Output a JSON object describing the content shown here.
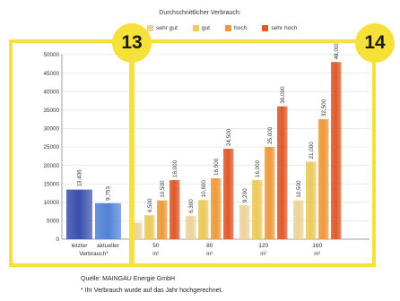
{
  "badges": [
    "13",
    "14"
  ],
  "footer": {
    "source": "Quelle: MAINGAU Energie GmbH",
    "note": "* Ihr Verbrauch wurde auf das Jahr hochgerechnet."
  },
  "chart_data": {
    "type": "bar",
    "title": "Durchschnittlicher Verbrauch:",
    "ylim": [
      0,
      50000
    ],
    "yticks": [
      "0",
      "5000",
      "10000",
      "15000",
      "20000",
      "25000",
      "30000",
      "35000",
      "40000",
      "45000",
      "50000"
    ],
    "legend": [
      {
        "label": "sehr gut",
        "color": "#ecd39a"
      },
      {
        "label": "gut",
        "color": "#ecc95a"
      },
      {
        "label": "hoch",
        "color": "#ee9a3a"
      },
      {
        "label": "sehr hoch",
        "color": "#dd5a2c"
      }
    ],
    "user": {
      "groups": [
        {
          "label": [
            "letzter",
            "Verbrauch*"
          ],
          "value": 13436,
          "value_label": "13,436"
        },
        {
          "label": [
            "aktueller",
            ""
          ],
          "value": 9753,
          "value_label": "9,753"
        }
      ],
      "colors": [
        "#3b4fae",
        "#4f82d6"
      ]
    },
    "categories": [
      {
        "label": "50",
        "unit": "m²"
      },
      {
        "label": "80",
        "unit": "m²"
      },
      {
        "label": "120",
        "unit": "m²"
      },
      {
        "label": "160",
        "unit": "m²"
      }
    ],
    "series": [
      {
        "name": "sehr gut",
        "values": [
          4500,
          6300,
          9200,
          10500
        ],
        "labels": [
          "",
          "6,300",
          "9,200",
          "10,500"
        ]
      },
      {
        "name": "gut",
        "values": [
          6500,
          10600,
          16000,
          21000
        ],
        "labels": [
          "6,500",
          "10,600",
          "16,000",
          "21,000"
        ]
      },
      {
        "name": "hoch",
        "values": [
          10500,
          16500,
          25000,
          32500
        ],
        "labels": [
          "10,500",
          "16,500",
          "25,000",
          "32,500"
        ]
      },
      {
        "name": "sehr hoch",
        "values": [
          16000,
          24500,
          36000,
          48000
        ],
        "labels": [
          "16,000",
          "24,500",
          "36,000",
          "48,000"
        ]
      }
    ]
  }
}
